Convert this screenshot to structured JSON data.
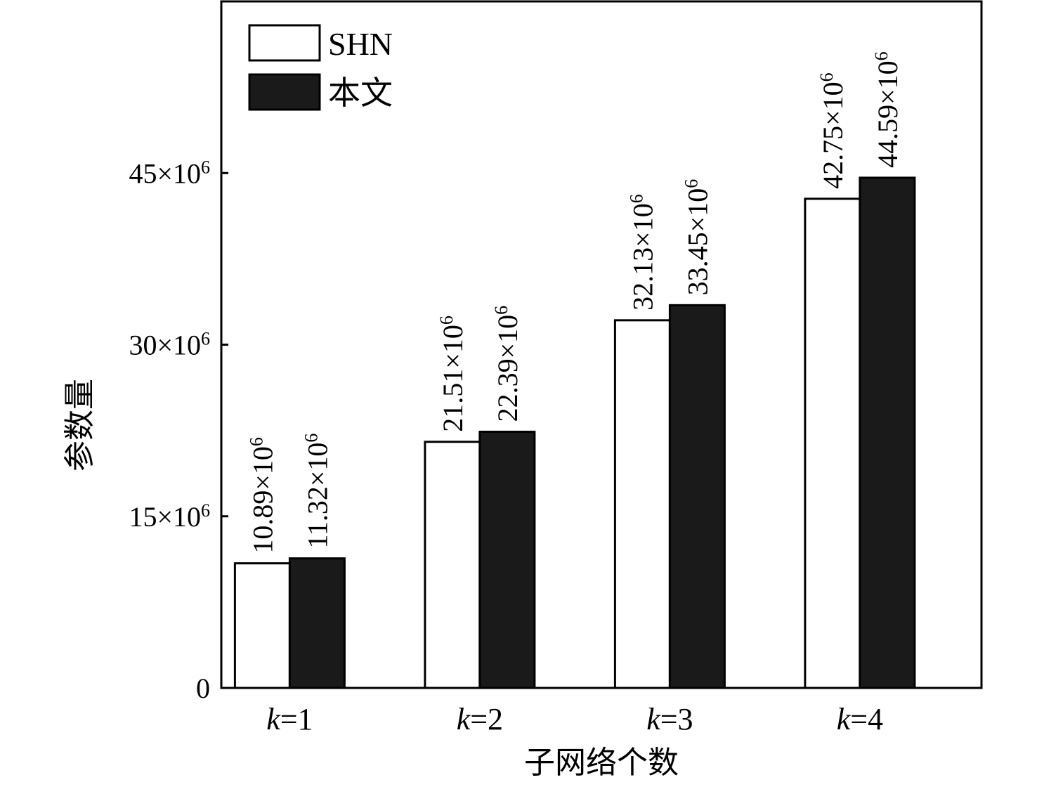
{
  "chart_data": {
    "type": "bar",
    "categories": [
      "k=1",
      "k=2",
      "k=3",
      "k=4"
    ],
    "category_var": "k",
    "category_values": [
      "1",
      "2",
      "3",
      "4"
    ],
    "xlabel": "子网络个数",
    "ylabel": "参数量",
    "ylim": [
      0,
      60000000
    ],
    "yticks": [
      {
        "value": 0,
        "label": "0",
        "mant": "",
        "exp": ""
      },
      {
        "value": 15000000,
        "label": "15×106",
        "mant": "15×10",
        "exp": "6"
      },
      {
        "value": 30000000,
        "label": "30×106",
        "mant": "30×10",
        "exp": "6"
      },
      {
        "value": 45000000,
        "label": "45×106",
        "mant": "45×10",
        "exp": "6"
      }
    ],
    "grid": false,
    "legend_position": "top-left",
    "series": [
      {
        "name": "SHN",
        "color": "#ffffff",
        "values": [
          10890000,
          21510000,
          32130000,
          42750000
        ],
        "labels": [
          {
            "mant": "10.89×10",
            "exp": "6"
          },
          {
            "mant": "21.51×10",
            "exp": "6"
          },
          {
            "mant": "32.13×10",
            "exp": "6"
          },
          {
            "mant": "42.75×10",
            "exp": "6"
          }
        ]
      },
      {
        "name": "本文",
        "color": "#1a1a1a",
        "values": [
          11320000,
          22390000,
          33450000,
          44590000
        ],
        "labels": [
          {
            "mant": "11.32×10",
            "exp": "6"
          },
          {
            "mant": "22.39×10",
            "exp": "6"
          },
          {
            "mant": "33.45×10",
            "exp": "6"
          },
          {
            "mant": "44.59×10",
            "exp": "6"
          }
        ]
      }
    ]
  }
}
